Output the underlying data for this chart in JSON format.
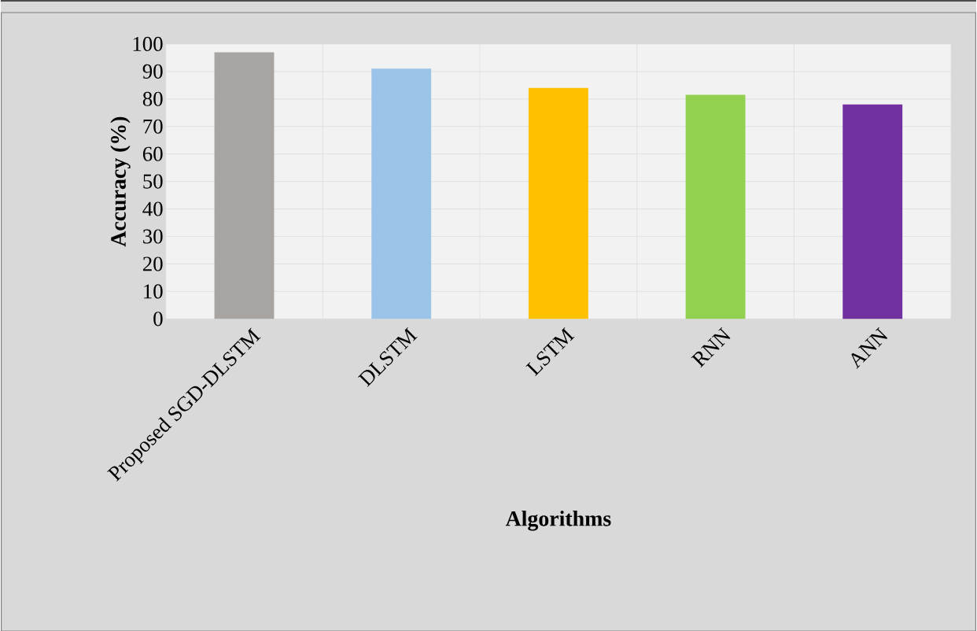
{
  "chart_data": {
    "type": "bar",
    "xlabel": "Algorithms",
    "ylabel": "Accuracy (%)",
    "categories": [
      "Proposed SGD-DLSTM",
      "DLSTM",
      "LSTM",
      "RNN",
      "ANN"
    ],
    "values": [
      97,
      91,
      84,
      81.5,
      78
    ],
    "colors": [
      "#a8a4a2",
      "#9cc4e8",
      "#ffc000",
      "#92d050",
      "#7030a0"
    ],
    "ylim": [
      0,
      100
    ],
    "yticks": [
      0,
      10,
      20,
      30,
      40,
      50,
      60,
      70,
      80,
      90,
      100
    ],
    "grid": true
  }
}
